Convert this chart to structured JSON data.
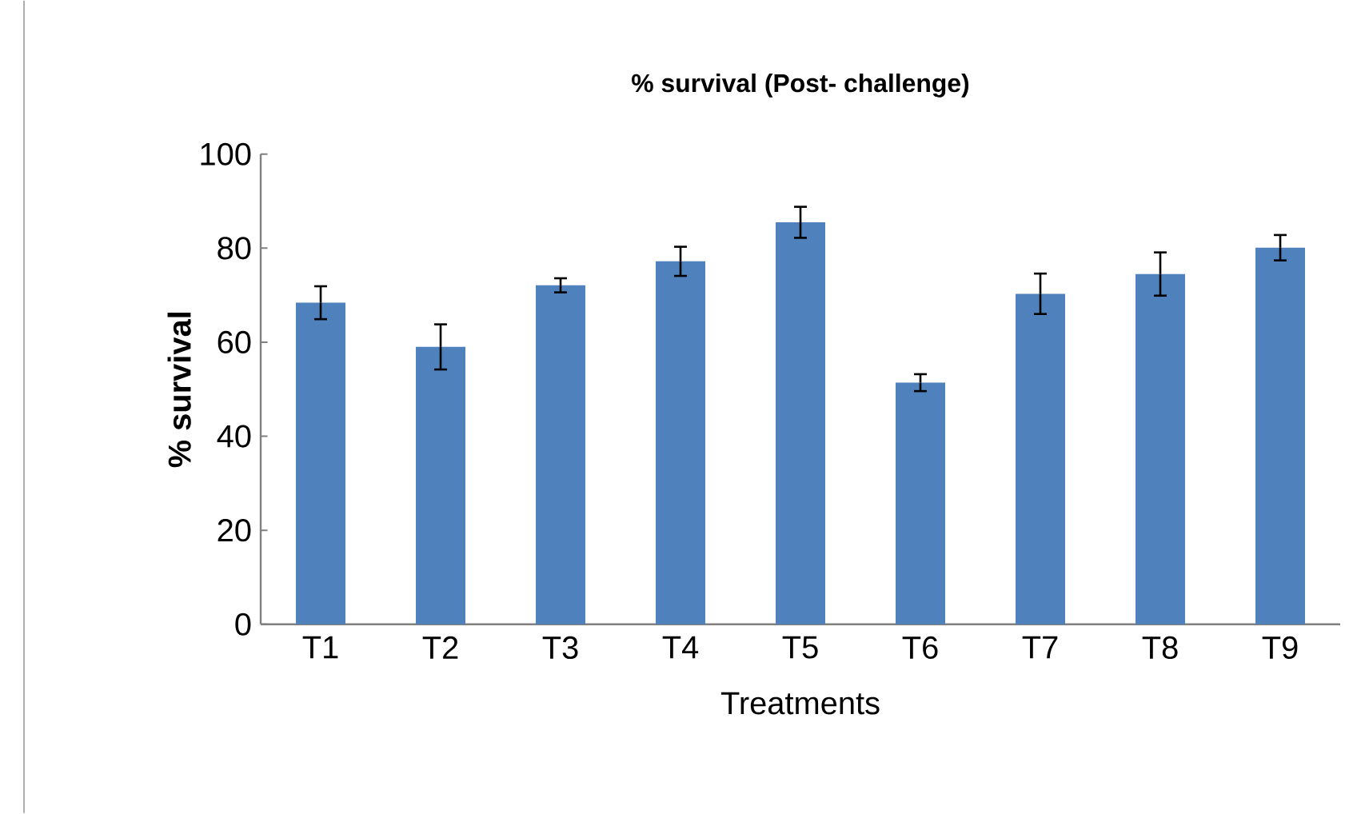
{
  "chart_data": {
    "type": "bar",
    "title": "% survival (Post- challenge)",
    "xlabel": "Treatments",
    "ylabel": "% survival",
    "categories": [
      "T1",
      "T2",
      "T3",
      "T4",
      "T5",
      "T6",
      "T7",
      "T8",
      "T9"
    ],
    "values": [
      68.4,
      59.0,
      72.1,
      77.2,
      85.5,
      51.4,
      70.3,
      74.5,
      80.1
    ],
    "errors": [
      3.5,
      4.8,
      1.5,
      3.1,
      3.3,
      1.8,
      4.3,
      4.6,
      2.7
    ],
    "color": "#4f81bd",
    "ylim": [
      0,
      100
    ],
    "yticks": [
      0,
      20,
      40,
      60,
      80,
      100
    ],
    "grid": false
  }
}
